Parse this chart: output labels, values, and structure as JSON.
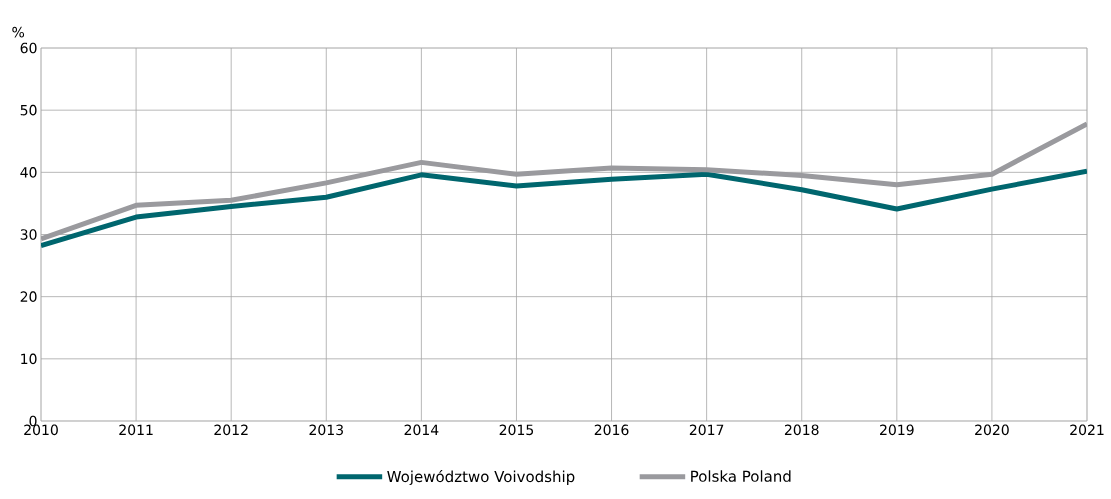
{
  "chart_data": {
    "type": "line",
    "ylabel": "%",
    "x": [
      2010,
      2011,
      2012,
      2013,
      2014,
      2015,
      2016,
      2017,
      2018,
      2019,
      2020,
      2021
    ],
    "series": [
      {
        "name": "Województwo Voivodship",
        "color": "#00666e",
        "values": [
          28.2,
          32.8,
          34.5,
          36.0,
          39.6,
          37.8,
          38.9,
          39.7,
          37.2,
          34.1,
          37.3,
          40.2
        ]
      },
      {
        "name": "Polska Poland",
        "color": "#9a9a9e",
        "values": [
          29.3,
          34.7,
          35.5,
          38.3,
          41.6,
          39.7,
          40.7,
          40.4,
          39.5,
          38.0,
          39.7,
          47.8
        ]
      }
    ],
    "xlim": [
      2010,
      2021
    ],
    "xticks": [
      2010,
      2011,
      2012,
      2013,
      2014,
      2015,
      2016,
      2017,
      2018,
      2019,
      2020,
      2021
    ],
    "ylim": [
      0,
      60
    ],
    "yticks": [
      0,
      10,
      20,
      30,
      40,
      50,
      60
    ],
    "grid": true,
    "legend": "bottom",
    "marker": "none",
    "line_style": "solid"
  }
}
